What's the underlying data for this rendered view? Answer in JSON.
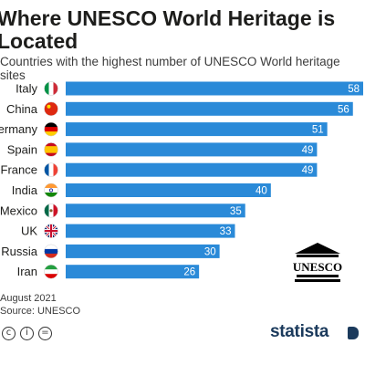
{
  "title": "Where UNESCO World Heritage is Located",
  "subtitle": "Countries with the highest number of UNESCO World heritage sites",
  "footer": {
    "date": "August 2021",
    "source": "Source: UNESCO",
    "brand": "statista",
    "logo_text": "UNESCO"
  },
  "colors": {
    "bar": "#2a8ad8",
    "text": "#1d1d1b",
    "brand": "#1b3a5c"
  },
  "chart_data": {
    "type": "bar",
    "orientation": "horizontal",
    "title": "Where UNESCO World Heritage is Located",
    "subtitle": "Countries with the highest number of UNESCO World heritage sites",
    "categories": [
      "Italy",
      "China",
      "Germany",
      "Spain",
      "France",
      "India",
      "Mexico",
      "UK",
      "Russia",
      "Iran"
    ],
    "values": [
      58,
      56,
      51,
      49,
      49,
      40,
      35,
      33,
      30,
      26
    ],
    "flag_icons": [
      "italy-flag-icon",
      "china-flag-icon",
      "germany-flag-icon",
      "spain-flag-icon",
      "france-flag-icon",
      "india-flag-icon",
      "mexico-flag-icon",
      "uk-flag-icon",
      "russia-flag-icon",
      "iran-flag-icon"
    ],
    "xlim": [
      0,
      58
    ],
    "grid": false,
    "legend": "none"
  }
}
